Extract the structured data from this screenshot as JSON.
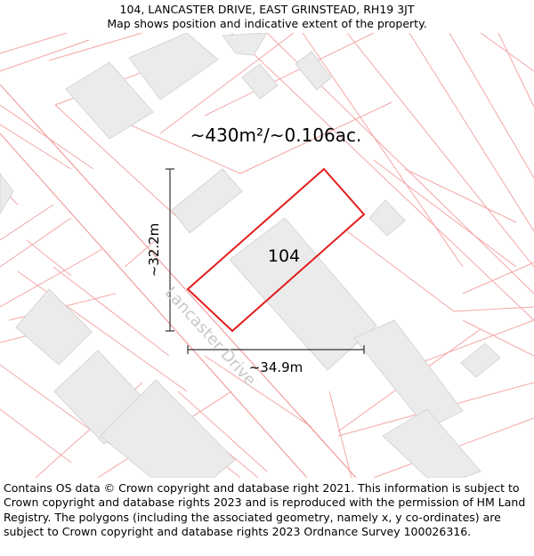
{
  "header": {
    "address": "104, LANCASTER DRIVE, EAST GRINSTEAD, RH19 3JT",
    "subtitle": "Map shows position and indicative extent of the property."
  },
  "map": {
    "area_label": "~430m²/~0.106ac.",
    "plot_number": "104",
    "road_name": "Lancaster Drive",
    "dim_height": "~32.2m",
    "dim_width": "~34.9m",
    "colors": {
      "parcel_line": "#f4a6a6",
      "building_fill": "#ebebeb",
      "building_stroke": "#d6d6d6",
      "highlight": "#e21c1c",
      "dimension": "#333333",
      "road_text": "#c8c8c8"
    }
  },
  "footer": {
    "attribution": "Contains OS data © Crown copyright and database right 2021. This information is subject to Crown copyright and database rights 2023 and is reproduced with the permission of HM Land Registry. The polygons (including the associated geometry, namely x, y co-ordinates) are subject to Crown copyright and database rights 2023 Ordnance Survey 100026316."
  }
}
